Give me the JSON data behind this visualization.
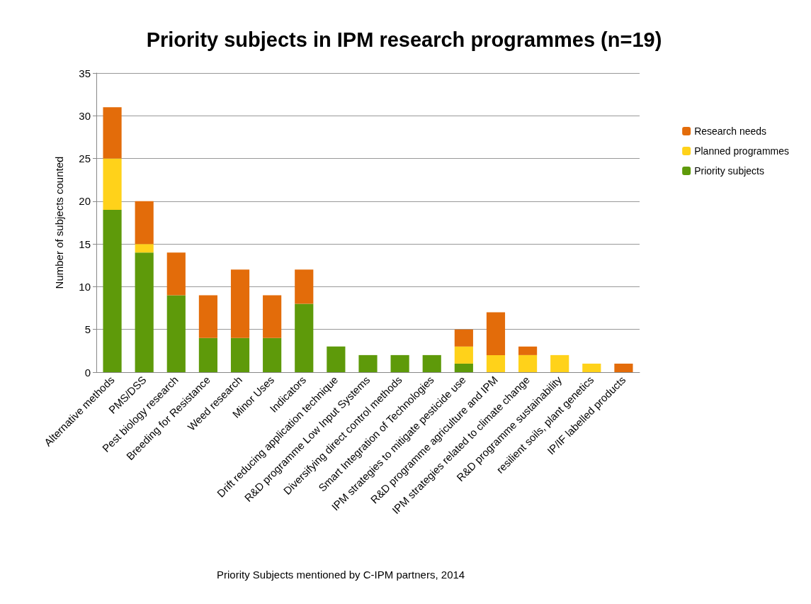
{
  "chart_data": {
    "type": "bar",
    "stacked": true,
    "title": "Priority subjects in IPM research programmes (n=19)",
    "ylabel": "Number of subjects counted",
    "annotations": [
      "Priority Subjects mentioned by C-IPM partners, 2014"
    ],
    "categories": [
      "Alternative methods",
      "PMS/DSS",
      "Pest biology research",
      "Breeding for Resistance",
      "Weed research",
      "Minor Uses",
      "Indicators",
      "Drift reducing application technique",
      "R&D programme Low Input Systems",
      "Diversifying direct control methods",
      "Smart Integration of Technologies",
      "IPM strategies to mitigate pesticide use",
      "R&D programme agriculture and IPM",
      "IPM strategies related to climate change",
      "R&D programme sustainability",
      "resilient soils, plant genetics",
      "IP/IF labelled products"
    ],
    "series": [
      {
        "name": "Priority subjects",
        "color": "#5e9a0a",
        "values": [
          19,
          14,
          9,
          4,
          4,
          4,
          8,
          3,
          2,
          2,
          2,
          1,
          0,
          0,
          0,
          0,
          0
        ]
      },
      {
        "name": "Planned programmes",
        "color": "#ffd21a",
        "values": [
          6,
          1,
          0,
          0,
          0,
          0,
          0,
          0,
          0,
          0,
          0,
          2,
          2,
          2,
          2,
          1,
          0
        ]
      },
      {
        "name": "Research needs",
        "color": "#e36c0a",
        "values": [
          6,
          5,
          5,
          5,
          8,
          5,
          4,
          0,
          0,
          0,
          0,
          2,
          5,
          1,
          0,
          0,
          1
        ]
      }
    ],
    "ylim": [
      0,
      35
    ],
    "yticks": [
      0,
      5,
      10,
      15,
      20,
      25,
      30,
      35
    ],
    "grid": "y",
    "legend": "right"
  }
}
